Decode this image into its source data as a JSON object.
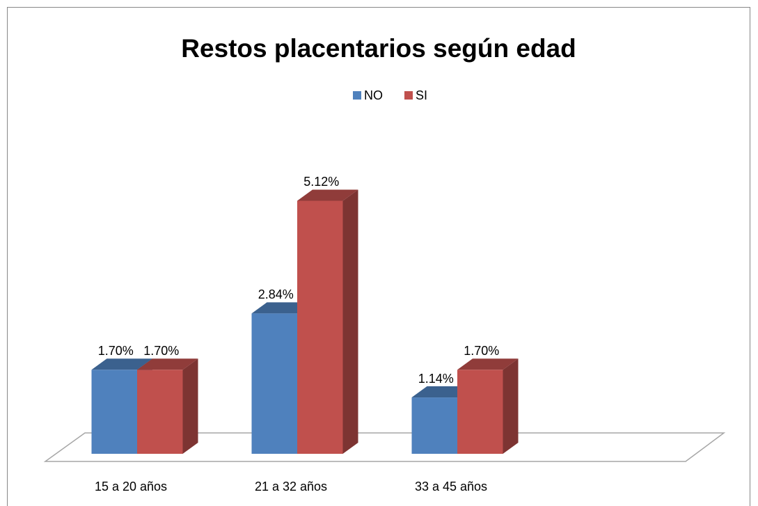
{
  "chart_data": {
    "type": "bar3d",
    "title": "Restos placentarios según edad",
    "categories": [
      "15 a 20 años",
      "21 a 32 años",
      "33 a 45 años",
      null
    ],
    "series": [
      {
        "name": "NO",
        "color": "#4f81bd",
        "values": [
          1.7,
          2.84,
          1.14,
          null
        ],
        "value_labels": [
          "1.70%",
          "2.84%",
          "1.14%",
          null
        ]
      },
      {
        "name": "SI",
        "color": "#c0504d",
        "values": [
          1.7,
          5.12,
          1.7,
          null
        ],
        "value_labels": [
          "1.70%",
          "5.12%",
          "1.70%",
          null
        ]
      }
    ],
    "legend": "top"
  }
}
